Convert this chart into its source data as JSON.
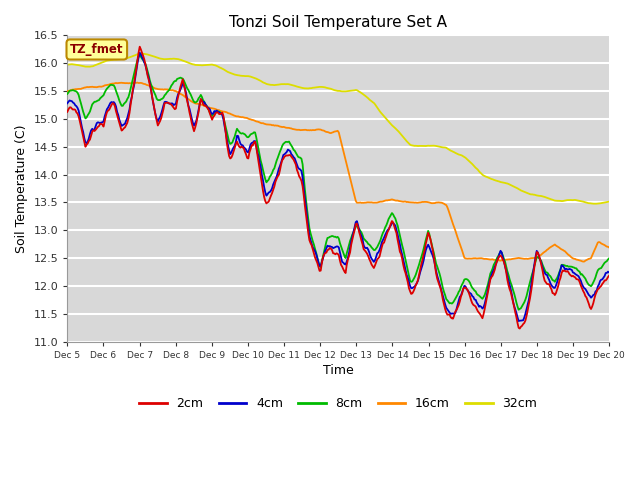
{
  "title": "Tonzi Soil Temperature Set A",
  "xlabel": "Time",
  "ylabel": "Soil Temperature (C)",
  "ylim": [
    11.0,
    16.5
  ],
  "plot_bg_color": "#d8d8d8",
  "fig_bg_color": "#ffffff",
  "legend_label": "TZ_fmet",
  "series": {
    "2cm": {
      "color": "#dd0000",
      "lw": 1.3
    },
    "4cm": {
      "color": "#0000cc",
      "lw": 1.3
    },
    "8cm": {
      "color": "#00bb00",
      "lw": 1.3
    },
    "16cm": {
      "color": "#ff8800",
      "lw": 1.3
    },
    "32cm": {
      "color": "#dddd00",
      "lw": 1.3
    }
  },
  "yticks": [
    11.0,
    11.5,
    12.0,
    12.5,
    13.0,
    13.5,
    14.0,
    14.5,
    15.0,
    15.5,
    16.0,
    16.5
  ],
  "xtick_labels": [
    "Dec 5",
    "Dec 6",
    "Dec 7",
    "Dec 8",
    "Dec 9",
    "Dec 10",
    "Dec 11",
    "Dec 12",
    "Dec 13",
    "Dec 14",
    "Dec 15",
    "Dec 16",
    "Dec 17",
    "Dec 18",
    "Dec 19",
    "Dec 20"
  ],
  "num_points": 480
}
